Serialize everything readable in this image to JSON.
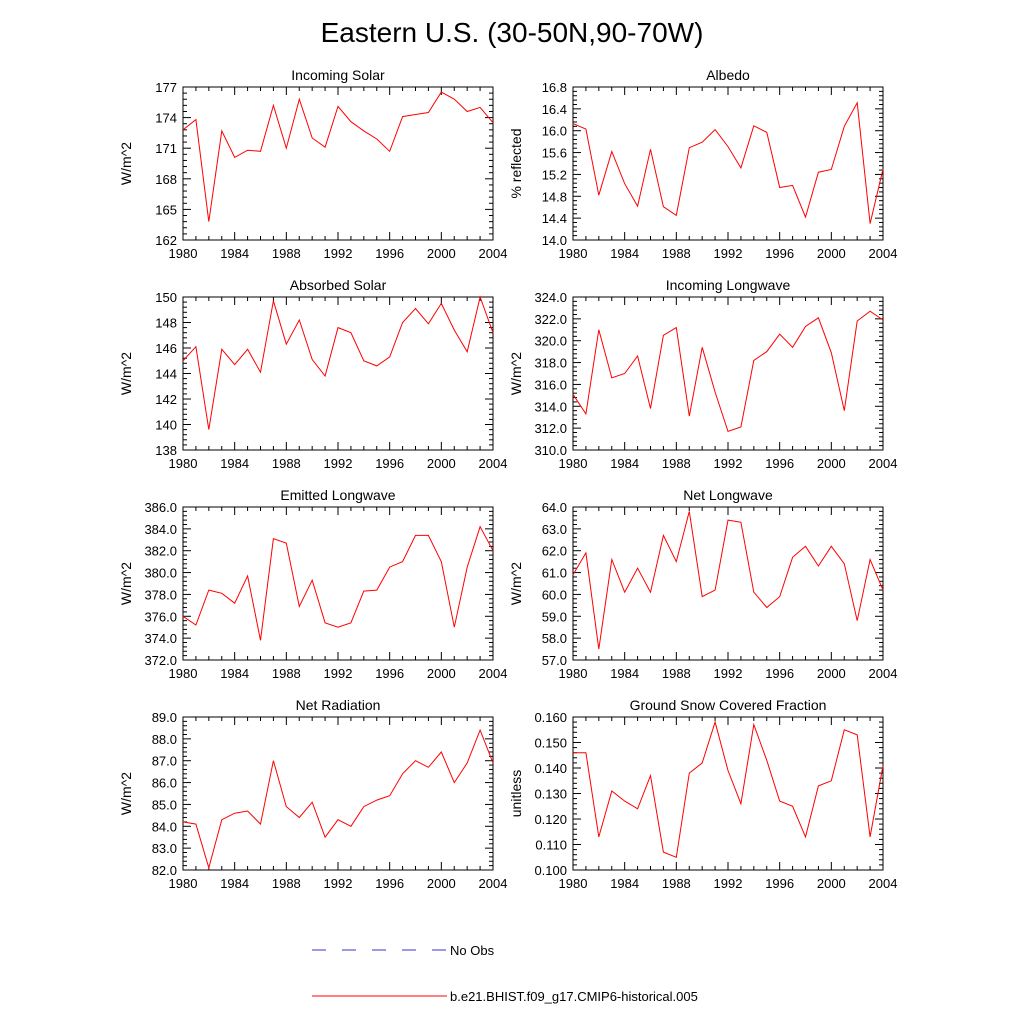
{
  "figure_title": "Eastern U.S. (30-50N,90-70W)",
  "colors": {
    "model_line": "#ff0000",
    "obs_line": "#3333cc",
    "axis": "#000000"
  },
  "legend": {
    "obs_label": "No Obs",
    "model_label": "b.e21.BHIST.f09_g17.CMIP6-historical.005"
  },
  "chart_data": [
    {
      "type": "line",
      "title": "Incoming Solar",
      "xlabel": "",
      "ylabel": "W/m^2",
      "xlim": [
        1980,
        2004
      ],
      "ylim": [
        162,
        177
      ],
      "xticks": [
        1980,
        1984,
        1988,
        1992,
        1996,
        2000,
        2004
      ],
      "xtick_labels": [
        "1980",
        "1984",
        "1988",
        "1992",
        "1996",
        "2000",
        "2004"
      ],
      "yticks": [
        162,
        165,
        168,
        171,
        174,
        177
      ],
      "ytick_labels": [
        "162",
        "165",
        "168",
        "171",
        "174",
        "177"
      ],
      "series": [
        {
          "name": "b.e21.BHIST.f09_g17.CMIP6-historical.005",
          "x": [
            1980,
            1981,
            1982,
            1983,
            1984,
            1985,
            1986,
            1987,
            1988,
            1989,
            1990,
            1991,
            1992,
            1993,
            1994,
            1995,
            1996,
            1997,
            1998,
            1999,
            2000,
            2001,
            2002,
            2003,
            2004
          ],
          "values": [
            172.8,
            173.8,
            163.8,
            172.7,
            170.1,
            170.8,
            170.7,
            175.2,
            171.0,
            175.8,
            172.0,
            171.1,
            175.1,
            173.6,
            172.7,
            171.9,
            170.7,
            174.1,
            174.3,
            174.5,
            176.5,
            175.8,
            174.6,
            175.0,
            173.5
          ]
        }
      ]
    },
    {
      "type": "line",
      "title": "Albedo",
      "xlabel": "",
      "ylabel": "% reflected",
      "xlim": [
        1980,
        2004
      ],
      "ylim": [
        14.0,
        16.8
      ],
      "xticks": [
        1980,
        1984,
        1988,
        1992,
        1996,
        2000,
        2004
      ],
      "xtick_labels": [
        "1980",
        "1984",
        "1988",
        "1992",
        "1996",
        "2000",
        "2004"
      ],
      "yticks": [
        14.0,
        14.4,
        14.8,
        15.2,
        15.6,
        16.0,
        16.4,
        16.8
      ],
      "ytick_labels": [
        "14.0",
        "14.4",
        "14.8",
        "15.2",
        "15.6",
        "16.0",
        "16.4",
        "16.8"
      ],
      "series": [
        {
          "name": "b.e21.BHIST.f09_g17.CMIP6-historical.005",
          "x": [
            1980,
            1981,
            1982,
            1983,
            1984,
            1985,
            1986,
            1987,
            1988,
            1989,
            1990,
            1991,
            1992,
            1993,
            1994,
            1995,
            1996,
            1997,
            1998,
            1999,
            2000,
            2001,
            2002,
            2003,
            2004
          ],
          "values": [
            16.13,
            16.03,
            14.82,
            15.62,
            15.03,
            14.62,
            15.66,
            14.61,
            14.45,
            15.69,
            15.79,
            16.02,
            15.71,
            15.32,
            16.09,
            15.97,
            14.96,
            15.0,
            14.42,
            15.24,
            15.29,
            16.08,
            16.51,
            14.3,
            15.3
          ]
        }
      ]
    },
    {
      "type": "line",
      "title": "Absorbed Solar",
      "xlabel": "",
      "ylabel": "W/m^2",
      "xlim": [
        1980,
        2004
      ],
      "ylim": [
        138,
        150
      ],
      "xticks": [
        1980,
        1984,
        1988,
        1992,
        1996,
        2000,
        2004
      ],
      "xtick_labels": [
        "1980",
        "1984",
        "1988",
        "1992",
        "1996",
        "2000",
        "2004"
      ],
      "yticks": [
        138,
        140,
        142,
        144,
        146,
        148,
        150
      ],
      "ytick_labels": [
        "138",
        "140",
        "142",
        "144",
        "146",
        "148",
        "150"
      ],
      "series": [
        {
          "name": "b.e21.BHIST.f09_g17.CMIP6-historical.005",
          "x": [
            1980,
            1981,
            1982,
            1983,
            1984,
            1985,
            1986,
            1987,
            1988,
            1989,
            1990,
            1991,
            1992,
            1993,
            1994,
            1995,
            1996,
            1997,
            1998,
            1999,
            2000,
            2001,
            2002,
            2003,
            2004
          ],
          "values": [
            145.0,
            146.1,
            139.6,
            145.9,
            144.7,
            145.9,
            144.1,
            149.7,
            146.3,
            148.2,
            145.1,
            143.8,
            147.6,
            147.2,
            145.0,
            144.6,
            145.3,
            148.0,
            149.1,
            147.9,
            149.5,
            147.4,
            145.7,
            150.0,
            147.2
          ]
        }
      ]
    },
    {
      "type": "line",
      "title": "Incoming Longwave",
      "xlabel": "",
      "ylabel": "W/m^2",
      "xlim": [
        1980,
        2004
      ],
      "ylim": [
        310.0,
        324.0
      ],
      "xticks": [
        1980,
        1984,
        1988,
        1992,
        1996,
        2000,
        2004
      ],
      "xtick_labels": [
        "1980",
        "1984",
        "1988",
        "1992",
        "1996",
        "2000",
        "2004"
      ],
      "yticks": [
        310,
        312,
        314,
        316,
        318,
        320,
        322,
        324
      ],
      "ytick_labels": [
        "310.0",
        "312.0",
        "314.0",
        "316.0",
        "318.0",
        "320.0",
        "322.0",
        "324.0"
      ],
      "series": [
        {
          "name": "b.e21.BHIST.f09_g17.CMIP6-historical.005",
          "x": [
            1980,
            1981,
            1982,
            1983,
            1984,
            1985,
            1986,
            1987,
            1988,
            1989,
            1990,
            1991,
            1992,
            1993,
            1994,
            1995,
            1996,
            1997,
            1998,
            1999,
            2000,
            2001,
            2002,
            2003,
            2004
          ],
          "values": [
            315.1,
            313.3,
            321.0,
            316.6,
            317.0,
            318.6,
            313.8,
            320.5,
            321.2,
            313.1,
            319.4,
            315.3,
            311.7,
            312.1,
            318.2,
            319.0,
            320.6,
            319.4,
            321.3,
            322.1,
            318.9,
            313.6,
            321.8,
            322.7,
            321.9
          ]
        }
      ]
    },
    {
      "type": "line",
      "title": "Emitted Longwave",
      "xlabel": "",
      "ylabel": "W/m^2",
      "xlim": [
        1980,
        2004
      ],
      "ylim": [
        372.0,
        386.0
      ],
      "xticks": [
        1980,
        1984,
        1988,
        1992,
        1996,
        2000,
        2004
      ],
      "xtick_labels": [
        "1980",
        "1984",
        "1988",
        "1992",
        "1996",
        "2000",
        "2004"
      ],
      "yticks": [
        372,
        374,
        376,
        378,
        380,
        382,
        384,
        386
      ],
      "ytick_labels": [
        "372.0",
        "374.0",
        "376.0",
        "378.0",
        "380.0",
        "382.0",
        "384.0",
        "386.0"
      ],
      "series": [
        {
          "name": "b.e21.BHIST.f09_g17.CMIP6-historical.005",
          "x": [
            1980,
            1981,
            1982,
            1983,
            1984,
            1985,
            1986,
            1987,
            1988,
            1989,
            1990,
            1991,
            1992,
            1993,
            1994,
            1995,
            1996,
            1997,
            1998,
            1999,
            2000,
            2001,
            2002,
            2003,
            2004
          ],
          "values": [
            376.0,
            375.2,
            378.4,
            378.1,
            377.2,
            379.7,
            373.8,
            383.1,
            382.7,
            376.9,
            379.3,
            375.4,
            375.0,
            375.4,
            378.3,
            378.4,
            380.5,
            381.0,
            383.4,
            383.4,
            381.0,
            375.0,
            380.5,
            384.2,
            382.0
          ]
        }
      ]
    },
    {
      "type": "line",
      "title": "Net Longwave",
      "xlabel": "",
      "ylabel": "W/m^2",
      "xlim": [
        1980,
        2004
      ],
      "ylim": [
        57.0,
        64.0
      ],
      "xticks": [
        1980,
        1984,
        1988,
        1992,
        1996,
        2000,
        2004
      ],
      "xtick_labels": [
        "1980",
        "1984",
        "1988",
        "1992",
        "1996",
        "2000",
        "2004"
      ],
      "yticks": [
        57,
        58,
        59,
        60,
        61,
        62,
        63,
        64
      ],
      "ytick_labels": [
        "57.0",
        "58.0",
        "59.0",
        "60.0",
        "61.0",
        "62.0",
        "63.0",
        "64.0"
      ],
      "series": [
        {
          "name": "b.e21.BHIST.f09_g17.CMIP6-historical.005",
          "x": [
            1980,
            1981,
            1982,
            1983,
            1984,
            1985,
            1986,
            1987,
            1988,
            1989,
            1990,
            1991,
            1992,
            1993,
            1994,
            1995,
            1996,
            1997,
            1998,
            1999,
            2000,
            2001,
            2002,
            2003,
            2004
          ],
          "values": [
            60.9,
            61.9,
            57.5,
            61.6,
            60.1,
            61.2,
            60.1,
            62.7,
            61.5,
            63.8,
            59.9,
            60.2,
            63.4,
            63.3,
            60.1,
            59.4,
            59.9,
            61.7,
            62.2,
            61.3,
            62.2,
            61.4,
            58.8,
            61.6,
            60.2
          ]
        }
      ]
    },
    {
      "type": "line",
      "title": "Net Radiation",
      "xlabel": "",
      "ylabel": "W/m^2",
      "xlim": [
        1980,
        2004
      ],
      "ylim": [
        82.0,
        89.0
      ],
      "xticks": [
        1980,
        1984,
        1988,
        1992,
        1996,
        2000,
        2004
      ],
      "xtick_labels": [
        "1980",
        "1984",
        "1988",
        "1992",
        "1996",
        "2000",
        "2004"
      ],
      "yticks": [
        82,
        83,
        84,
        85,
        86,
        87,
        88,
        89
      ],
      "ytick_labels": [
        "82.0",
        "83.0",
        "84.0",
        "85.0",
        "86.0",
        "87.0",
        "88.0",
        "89.0"
      ],
      "series": [
        {
          "name": "b.e21.BHIST.f09_g17.CMIP6-historical.005",
          "x": [
            1980,
            1981,
            1982,
            1983,
            1984,
            1985,
            1986,
            1987,
            1988,
            1989,
            1990,
            1991,
            1992,
            1993,
            1994,
            1995,
            1996,
            1997,
            1998,
            1999,
            2000,
            2001,
            2002,
            2003,
            2004
          ],
          "values": [
            84.2,
            84.1,
            82.1,
            84.3,
            84.6,
            84.7,
            84.1,
            87.0,
            84.9,
            84.4,
            85.1,
            83.5,
            84.3,
            84.0,
            84.9,
            85.2,
            85.4,
            86.4,
            87.0,
            86.7,
            87.4,
            86.0,
            86.9,
            88.4,
            86.9
          ]
        }
      ]
    },
    {
      "type": "line",
      "title": "Ground Snow Covered Fraction",
      "xlabel": "",
      "ylabel": "unitless",
      "xlim": [
        1980,
        2004
      ],
      "ylim": [
        0.1,
        0.16
      ],
      "xticks": [
        1980,
        1984,
        1988,
        1992,
        1996,
        2000,
        2004
      ],
      "xtick_labels": [
        "1980",
        "1984",
        "1988",
        "1992",
        "1996",
        "2000",
        "2004"
      ],
      "yticks": [
        0.1,
        0.11,
        0.12,
        0.13,
        0.14,
        0.15,
        0.16
      ],
      "ytick_labels": [
        "0.100",
        "0.110",
        "0.120",
        "0.130",
        "0.140",
        "0.150",
        "0.160"
      ],
      "series": [
        {
          "name": "b.e21.BHIST.f09_g17.CMIP6-historical.005",
          "x": [
            1980,
            1981,
            1982,
            1983,
            1984,
            1985,
            1986,
            1987,
            1988,
            1989,
            1990,
            1991,
            1992,
            1993,
            1994,
            1995,
            1996,
            1997,
            1998,
            1999,
            2000,
            2001,
            2002,
            2003,
            2004
          ],
          "values": [
            0.146,
            0.146,
            0.113,
            0.131,
            0.127,
            0.124,
            0.137,
            0.107,
            0.105,
            0.138,
            0.142,
            0.158,
            0.139,
            0.126,
            0.157,
            0.143,
            0.127,
            0.125,
            0.113,
            0.133,
            0.135,
            0.155,
            0.153,
            0.113,
            0.141
          ]
        }
      ]
    }
  ]
}
